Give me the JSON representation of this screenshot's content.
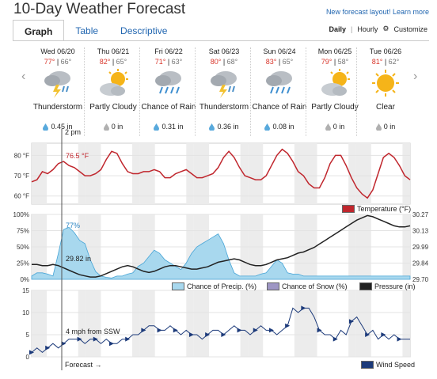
{
  "page": {
    "title": "10-Day Weather Forecast",
    "new_layout": "New forecast layout! Learn more"
  },
  "tabs": [
    {
      "label": "Graph"
    },
    {
      "label": "Table"
    },
    {
      "label": "Descriptive"
    }
  ],
  "view_options": {
    "daily": "Daily",
    "hourly": "Hourly",
    "sep": "|",
    "customize": "Customize",
    "customize_icon": "gear-icon"
  },
  "nav": {
    "prev": "‹",
    "next": "›"
  },
  "days": [
    {
      "date": "Wed 06/20",
      "hi": "77°",
      "lo": "66°",
      "cond": "Thunderstorm",
      "icon": "thunderstorm-icon",
      "precip": "0.45 in"
    },
    {
      "date": "Thu 06/21",
      "hi": "82°",
      "lo": "65°",
      "cond": "Partly Cloudy",
      "icon": "partly-cloudy-icon",
      "precip": "0 in"
    },
    {
      "date": "Fri 06/22",
      "hi": "71°",
      "lo": "63°",
      "cond": "Chance of Rain",
      "icon": "rain-icon",
      "precip": "0.31 in"
    },
    {
      "date": "Sat 06/23",
      "hi": "80°",
      "lo": "68°",
      "cond": "Thunderstorm",
      "icon": "thunderstorm-icon",
      "precip": "0.36 in"
    },
    {
      "date": "Sun 06/24",
      "hi": "83°",
      "lo": "65°",
      "cond": "Chance of Rain",
      "icon": "rain-icon",
      "precip": "0.08 in"
    },
    {
      "date": "Mon 06/25",
      "hi": "79°",
      "lo": "58°",
      "cond": "Partly Cloudy",
      "icon": "partly-cloudy-icon",
      "precip": "0 in"
    },
    {
      "date": "Tue 06/26",
      "hi": "81°",
      "lo": "62°",
      "cond": "Clear",
      "icon": "clear-icon",
      "precip": "0 in"
    }
  ],
  "colors": {
    "temperature": "#c0262d",
    "precip_fill": "#a8d8ee",
    "precip_line": "#46a4d6",
    "pressure": "#222222",
    "snow": "#9e96c4",
    "wind": "#1c3a7a",
    "night_band": "#ececec"
  },
  "cursor": {
    "time_label": "2 pm",
    "temp_label": "76.5 °F",
    "precip_label": "77%",
    "pressure_label": "29.82 in",
    "wind_label": "4 mph from SSW"
  },
  "forecast_label": "Forecast →",
  "chart_data": [
    {
      "type": "line",
      "name": "temperature",
      "ylabel": "°F",
      "ylim": [
        56,
        86
      ],
      "yticks": [
        "80 °F",
        "70 °F",
        "60 °F"
      ],
      "legend": "Temperature (°F)",
      "series": [
        {
          "name": "Temperature (°F)",
          "values": [
            67,
            68,
            72,
            71,
            73,
            76,
            77,
            75,
            74,
            72,
            70,
            70,
            71,
            73,
            78,
            82,
            81,
            76,
            72,
            71,
            71,
            72,
            72,
            73,
            72,
            69,
            69,
            71,
            72,
            73,
            71,
            69,
            69,
            70,
            71,
            74,
            79,
            82,
            79,
            74,
            70,
            69,
            68,
            68,
            70,
            75,
            80,
            83,
            81,
            77,
            72,
            70,
            66,
            64,
            64,
            69,
            76,
            80,
            80,
            75,
            69,
            64,
            61,
            59,
            63,
            71,
            79,
            81,
            79,
            75,
            70,
            68
          ]
        }
      ]
    },
    {
      "type": "area",
      "name": "precipitation-pressure",
      "yticks_left": [
        "100%",
        "75%",
        "50%",
        "25%",
        "0%"
      ],
      "yticks_right": [
        "30.27",
        "30.13",
        "29.99",
        "29.84",
        "29.70"
      ],
      "legend": [
        "Chance of Precip. (%)",
        "Chance of Snow (%)",
        "Pressure (in)"
      ],
      "precip": [
        5,
        10,
        10,
        8,
        5,
        40,
        77,
        80,
        72,
        60,
        55,
        30,
        12,
        5,
        3,
        2,
        5,
        5,
        8,
        10,
        20,
        25,
        35,
        45,
        40,
        30,
        25,
        20,
        15,
        25,
        40,
        50,
        55,
        60,
        65,
        70,
        55,
        30,
        10,
        5,
        5,
        5,
        5,
        8,
        10,
        20,
        30,
        25,
        10,
        8,
        8,
        5,
        5,
        5,
        5,
        5,
        5,
        5,
        5,
        5,
        5,
        5,
        5,
        5,
        5,
        5,
        5,
        5,
        5,
        5,
        5,
        5
      ],
      "pressure": [
        29.83,
        29.83,
        29.82,
        29.82,
        29.83,
        29.82,
        29.8,
        29.78,
        29.76,
        29.74,
        29.73,
        29.72,
        29.72,
        29.73,
        29.75,
        29.77,
        29.79,
        29.81,
        29.82,
        29.81,
        29.79,
        29.77,
        29.76,
        29.77,
        29.79,
        29.81,
        29.82,
        29.82,
        29.81,
        29.8,
        29.79,
        29.79,
        29.8,
        29.81,
        29.83,
        29.85,
        29.86,
        29.87,
        29.88,
        29.87,
        29.85,
        29.83,
        29.82,
        29.82,
        29.83,
        29.85,
        29.87,
        29.88,
        29.89,
        29.91,
        29.93,
        29.94,
        29.96,
        29.98,
        30.01,
        30.04,
        30.07,
        30.1,
        30.13,
        30.16,
        30.19,
        30.22,
        30.24,
        30.26,
        30.25,
        30.23,
        30.21,
        30.19,
        30.17,
        30.16,
        30.16,
        30.17
      ],
      "ylim_precip": [
        0,
        100
      ],
      "ylim_pressure": [
        29.7,
        30.27
      ]
    },
    {
      "type": "line",
      "name": "wind",
      "yticks": [
        "15",
        "10",
        "5",
        "0"
      ],
      "ylim": [
        0,
        15
      ],
      "legend": "Wind Speed",
      "series": [
        {
          "name": "Wind Speed",
          "values": [
            1,
            2,
            1,
            2,
            3,
            2,
            3,
            4,
            4,
            4,
            3,
            4,
            4,
            3,
            4,
            3,
            3,
            4,
            4,
            5,
            5,
            6,
            7,
            7,
            6,
            6,
            7,
            6,
            5,
            6,
            5,
            5,
            4,
            5,
            6,
            6,
            5,
            6,
            7,
            6,
            6,
            5,
            6,
            7,
            6,
            6,
            5,
            6,
            7,
            11,
            10,
            11,
            11,
            9,
            6,
            5,
            5,
            4,
            6,
            5,
            8,
            9,
            7,
            5,
            6,
            4,
            5,
            4,
            5,
            4,
            4,
            4
          ]
        }
      ]
    }
  ]
}
